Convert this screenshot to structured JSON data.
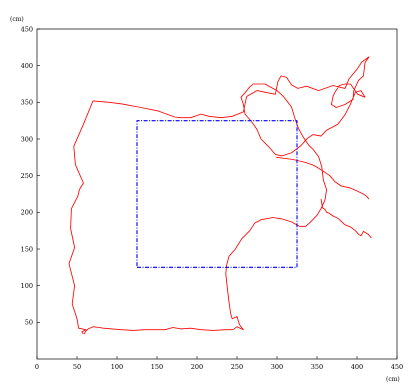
{
  "chart_data": {
    "type": "line",
    "title": "",
    "xlabel": "(cm)",
    "ylabel": "(cm)",
    "xlim": [
      0,
      450
    ],
    "ylim": [
      0,
      450
    ],
    "x_ticks": [
      "0",
      "50",
      "100",
      "150",
      "200",
      "250",
      "300",
      "350",
      "400",
      "450"
    ],
    "y_ticks": [
      "450",
      "400",
      "350",
      "300",
      "250",
      "200",
      "150",
      "100",
      "50"
    ],
    "grid": false,
    "legend": "none",
    "series": [
      {
        "color": "#ff0000",
        "style": "solid",
        "x": [
          58,
          56,
          61,
          52,
          50,
          44,
          47,
          40,
          47,
          42,
          43,
          51,
          53,
          58,
          48,
          46,
          58,
          70,
          90,
          105,
          130,
          152,
          172,
          180,
          192,
          205,
          215,
          230,
          244,
          258,
          262,
          275,
          298,
          301,
          305,
          312,
          318,
          326,
          337,
          352,
          370,
          385,
          390,
          400,
          406,
          415,
          410,
          408,
          402,
          396,
          395,
          385,
          374,
          368,
          370,
          372,
          378,
          385,
          392,
          395,
          401,
          410,
          405,
          398,
          392,
          385,
          376,
          362,
          355,
          345,
          338,
          330,
          318,
          306,
          298,
          290,
          280,
          275,
          268,
          260,
          258,
          255,
          260,
          265,
          270,
          285,
          300,
          308,
          318,
          323,
          327,
          332,
          340,
          345,
          352,
          356,
          358,
          362,
          360,
          355,
          350,
          342,
          336,
          328,
          318,
          306,
          295,
          280,
          272,
          266,
          256,
          248,
          240,
          237,
          236,
          238,
          240,
          242,
          244,
          250,
          253,
          258,
          250,
          245,
          236,
          220,
          205,
          192,
          180,
          170,
          160,
          150,
          135,
          120,
          105,
          94,
          83,
          78,
          70,
          68,
          64,
          61,
          59
        ],
        "y": [
          34,
          37,
          40,
          42,
          55,
          75,
          100,
          130,
          152,
          178,
          205,
          222,
          231,
          240,
          265,
          290,
          320,
          352,
          350,
          348,
          343,
          338,
          330,
          329,
          329,
          334,
          331,
          329,
          331,
          337,
          358,
          366,
          361,
          378,
          386,
          384,
          374,
          369,
          372,
          366,
          373,
          369,
          382,
          395,
          405,
          412,
          404,
          386,
          380,
          366,
          354,
          347,
          343,
          347,
          358,
          363,
          373,
          375,
          375,
          370,
          361,
          357,
          366,
          364,
          348,
          333,
          320,
          312,
          304,
          306,
          301,
          291,
          281,
          277,
          279,
          289,
          300,
          313,
          324,
          334,
          347,
          357,
          363,
          370,
          375,
          375,
          366,
          358,
          344,
          326,
          314,
          304,
          291,
          286,
          276,
          262,
          244,
          231,
          217,
          205,
          196,
          187,
          181,
          181,
          187,
          191,
          193,
          190,
          185,
          175,
          164,
          150,
          140,
          128,
          116,
          96,
          78,
          62,
          55,
          58,
          47,
          40,
          44,
          40,
          40,
          39,
          40,
          42,
          41,
          43,
          40,
          40,
          40,
          39,
          40,
          41,
          42,
          43,
          44,
          43,
          41,
          38,
          34
        ]
      },
      {
        "color": "#ff0000",
        "style": "solid",
        "x": [
          299,
          320,
          336,
          346,
          352,
          358,
          366,
          370,
          372,
          380,
          392,
          398,
          408,
          412,
          415
        ],
        "y": [
          275,
          272,
          268,
          264,
          260,
          256,
          250,
          245,
          242,
          236,
          233,
          230,
          225,
          222,
          218
        ]
      },
      {
        "color": "#ff0000",
        "style": "solid",
        "x": [
          355,
          356,
          357,
          360,
          362,
          365,
          370,
          376,
          380,
          385,
          392,
          398,
          402,
          405,
          408,
          414,
          418
        ],
        "y": [
          218,
          212,
          206,
          204,
          200,
          199,
          195,
          192,
          188,
          183,
          180,
          175,
          170,
          168,
          174,
          170,
          165
        ]
      },
      {
        "color": "#0000ff",
        "style": "dashdot",
        "x": [
          125,
          325,
          325,
          125,
          125
        ],
        "y": [
          125,
          125,
          325,
          325,
          125
        ]
      }
    ]
  }
}
